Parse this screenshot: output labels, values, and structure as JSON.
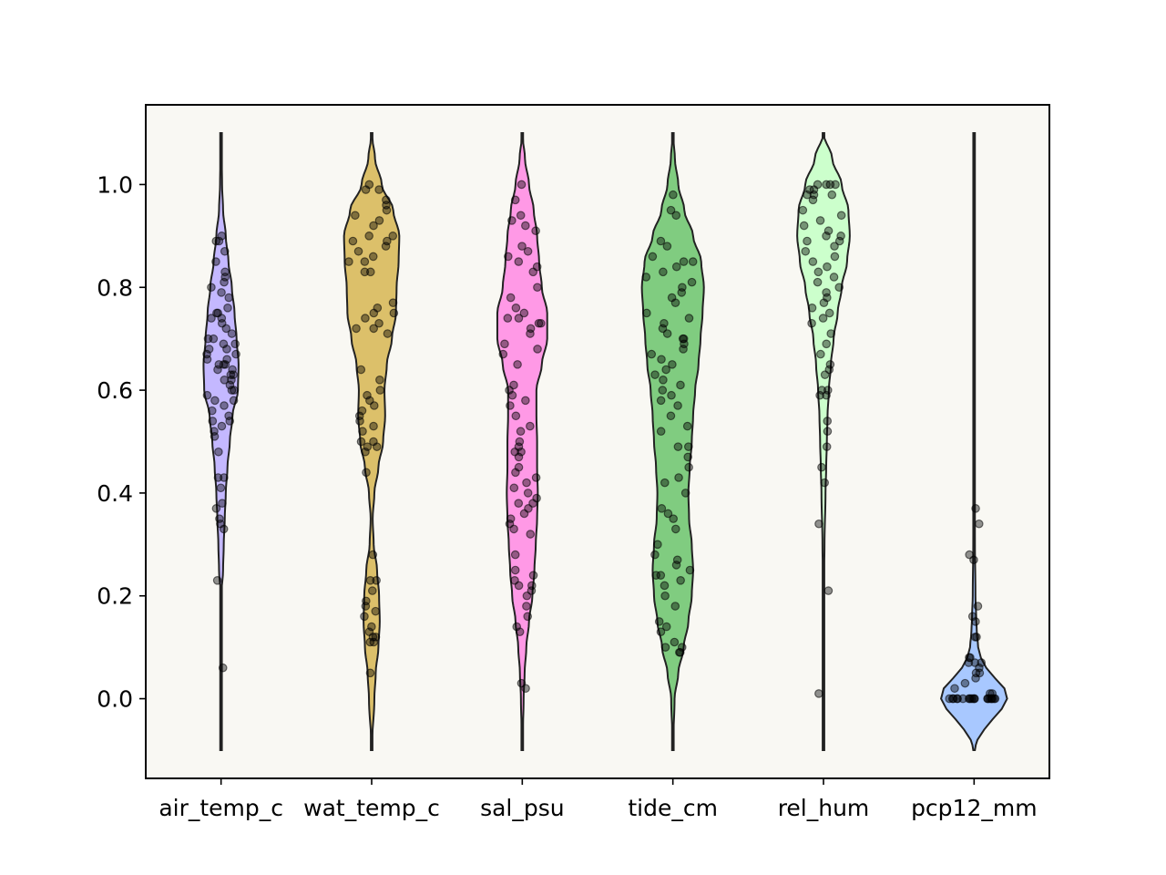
{
  "chart_data": {
    "type": "violin",
    "categories": [
      "air_temp_c",
      "wat_temp_c",
      "sal_psu",
      "tide_cm",
      "rel_hum",
      "pcp12_mm"
    ],
    "ylim": [
      -0.155,
      1.155
    ],
    "yticks": [
      "0.0",
      "0.2",
      "0.4",
      "0.6",
      "0.8",
      "1.0"
    ],
    "grid": false,
    "colors": [
      "#c4b8ff",
      "#dcc06a",
      "#ff99e6",
      "#80cc80",
      "#ccffcc",
      "#a8c8ff"
    ],
    "series": [
      {
        "category": "air_temp_c",
        "range": [
          -0.1,
          1.1
        ],
        "density_profile": [
          [
            -0.1,
            0.0
          ],
          [
            0.0,
            0.0
          ],
          [
            0.1,
            0.0
          ],
          [
            0.2,
            0.005
          ],
          [
            0.25,
            0.06
          ],
          [
            0.3,
            0.08
          ],
          [
            0.35,
            0.11
          ],
          [
            0.4,
            0.14
          ],
          [
            0.45,
            0.19
          ],
          [
            0.5,
            0.26
          ],
          [
            0.55,
            0.34
          ],
          [
            0.6,
            0.5
          ],
          [
            0.65,
            0.52
          ],
          [
            0.7,
            0.46
          ],
          [
            0.75,
            0.4
          ],
          [
            0.8,
            0.32
          ],
          [
            0.85,
            0.22
          ],
          [
            0.9,
            0.14
          ],
          [
            0.95,
            0.06
          ],
          [
            1.0,
            0.03
          ],
          [
            1.1,
            0.0
          ]
        ],
        "points": [
          0.89,
          0.9,
          0.89,
          0.87,
          0.85,
          0.83,
          0.82,
          0.81,
          0.8,
          0.79,
          0.78,
          0.76,
          0.75,
          0.75,
          0.74,
          0.74,
          0.73,
          0.72,
          0.71,
          0.7,
          0.7,
          0.69,
          0.69,
          0.68,
          0.68,
          0.67,
          0.67,
          0.66,
          0.66,
          0.65,
          0.65,
          0.65,
          0.64,
          0.64,
          0.63,
          0.63,
          0.62,
          0.62,
          0.61,
          0.6,
          0.6,
          0.59,
          0.58,
          0.58,
          0.57,
          0.56,
          0.55,
          0.54,
          0.54,
          0.53,
          0.52,
          0.51,
          0.48,
          0.43,
          0.43,
          0.41,
          0.38,
          0.37,
          0.35,
          0.34,
          0.33,
          0.23,
          0.06
        ]
      },
      {
        "category": "wat_temp_c",
        "range": [
          -0.1,
          1.1
        ],
        "density_profile": [
          [
            -0.1,
            0.0
          ],
          [
            0.0,
            0.08
          ],
          [
            0.05,
            0.12
          ],
          [
            0.1,
            0.2
          ],
          [
            0.15,
            0.24
          ],
          [
            0.2,
            0.22
          ],
          [
            0.25,
            0.16
          ],
          [
            0.3,
            0.06
          ],
          [
            0.35,
            0.03
          ],
          [
            0.4,
            0.08
          ],
          [
            0.45,
            0.2
          ],
          [
            0.5,
            0.34
          ],
          [
            0.55,
            0.4
          ],
          [
            0.6,
            0.38
          ],
          [
            0.65,
            0.45
          ],
          [
            0.7,
            0.6
          ],
          [
            0.75,
            0.72
          ],
          [
            0.8,
            0.74
          ],
          [
            0.85,
            0.8
          ],
          [
            0.9,
            0.82
          ],
          [
            0.95,
            0.64
          ],
          [
            1.0,
            0.3
          ],
          [
            1.05,
            0.1
          ],
          [
            1.1,
            0.0
          ]
        ],
        "points": [
          1.0,
          0.99,
          0.99,
          0.97,
          0.96,
          0.95,
          0.94,
          0.93,
          0.92,
          0.9,
          0.9,
          0.89,
          0.89,
          0.88,
          0.87,
          0.86,
          0.85,
          0.85,
          0.83,
          0.83,
          0.77,
          0.76,
          0.75,
          0.75,
          0.74,
          0.73,
          0.72,
          0.72,
          0.71,
          0.64,
          0.62,
          0.6,
          0.59,
          0.58,
          0.57,
          0.56,
          0.55,
          0.54,
          0.53,
          0.52,
          0.5,
          0.5,
          0.49,
          0.49,
          0.48,
          0.44,
          0.28,
          0.23,
          0.23,
          0.21,
          0.19,
          0.18,
          0.17,
          0.16,
          0.14,
          0.13,
          0.12,
          0.12,
          0.11,
          0.11,
          0.05
        ]
      },
      {
        "category": "sal_psu",
        "range": [
          -0.1,
          1.1
        ],
        "density_profile": [
          [
            -0.1,
            0.0
          ],
          [
            0.0,
            0.04
          ],
          [
            0.05,
            0.07
          ],
          [
            0.1,
            0.12
          ],
          [
            0.15,
            0.2
          ],
          [
            0.2,
            0.3
          ],
          [
            0.25,
            0.36
          ],
          [
            0.3,
            0.4
          ],
          [
            0.35,
            0.44
          ],
          [
            0.4,
            0.46
          ],
          [
            0.45,
            0.44
          ],
          [
            0.5,
            0.44
          ],
          [
            0.55,
            0.42
          ],
          [
            0.6,
            0.42
          ],
          [
            0.65,
            0.58
          ],
          [
            0.7,
            0.74
          ],
          [
            0.75,
            0.74
          ],
          [
            0.8,
            0.58
          ],
          [
            0.85,
            0.5
          ],
          [
            0.9,
            0.44
          ],
          [
            0.95,
            0.34
          ],
          [
            1.0,
            0.2
          ],
          [
            1.05,
            0.08
          ],
          [
            1.1,
            0.0
          ]
        ],
        "points": [
          1.0,
          0.97,
          0.94,
          0.93,
          0.92,
          0.91,
          0.88,
          0.87,
          0.86,
          0.85,
          0.84,
          0.83,
          0.8,
          0.78,
          0.76,
          0.75,
          0.74,
          0.74,
          0.73,
          0.73,
          0.72,
          0.71,
          0.69,
          0.68,
          0.67,
          0.65,
          0.61,
          0.6,
          0.59,
          0.58,
          0.57,
          0.55,
          0.53,
          0.52,
          0.5,
          0.49,
          0.48,
          0.48,
          0.47,
          0.45,
          0.44,
          0.43,
          0.42,
          0.41,
          0.4,
          0.39,
          0.38,
          0.38,
          0.37,
          0.36,
          0.35,
          0.34,
          0.33,
          0.32,
          0.28,
          0.25,
          0.24,
          0.23,
          0.22,
          0.22,
          0.21,
          0.2,
          0.18,
          0.16,
          0.14,
          0.13,
          0.03,
          0.02
        ]
      },
      {
        "category": "tide_cm",
        "range": [
          -0.1,
          1.1
        ],
        "density_profile": [
          [
            -0.1,
            0.0
          ],
          [
            0.0,
            0.05
          ],
          [
            0.05,
            0.16
          ],
          [
            0.1,
            0.32
          ],
          [
            0.15,
            0.46
          ],
          [
            0.2,
            0.56
          ],
          [
            0.25,
            0.6
          ],
          [
            0.3,
            0.56
          ],
          [
            0.35,
            0.48
          ],
          [
            0.4,
            0.46
          ],
          [
            0.45,
            0.5
          ],
          [
            0.5,
            0.56
          ],
          [
            0.55,
            0.6
          ],
          [
            0.6,
            0.66
          ],
          [
            0.65,
            0.76
          ],
          [
            0.7,
            0.82
          ],
          [
            0.75,
            0.88
          ],
          [
            0.8,
            0.92
          ],
          [
            0.85,
            0.84
          ],
          [
            0.9,
            0.6
          ],
          [
            0.95,
            0.34
          ],
          [
            1.0,
            0.16
          ],
          [
            1.05,
            0.06
          ],
          [
            1.1,
            0.0
          ]
        ],
        "points": [
          0.98,
          0.95,
          0.94,
          0.89,
          0.88,
          0.86,
          0.85,
          0.85,
          0.84,
          0.83,
          0.82,
          0.81,
          0.8,
          0.79,
          0.78,
          0.77,
          0.75,
          0.74,
          0.73,
          0.72,
          0.71,
          0.7,
          0.7,
          0.69,
          0.68,
          0.67,
          0.66,
          0.65,
          0.64,
          0.63,
          0.62,
          0.61,
          0.6,
          0.59,
          0.58,
          0.57,
          0.55,
          0.53,
          0.52,
          0.49,
          0.49,
          0.47,
          0.45,
          0.43,
          0.42,
          0.4,
          0.37,
          0.36,
          0.35,
          0.33,
          0.3,
          0.28,
          0.27,
          0.26,
          0.25,
          0.24,
          0.24,
          0.23,
          0.22,
          0.2,
          0.18,
          0.15,
          0.14,
          0.13,
          0.11,
          0.1,
          0.1,
          0.09,
          0.09
        ]
      },
      {
        "category": "rel_hum",
        "range": [
          -0.1,
          1.1
        ],
        "density_profile": [
          [
            -0.1,
            0.0
          ],
          [
            0.0,
            0.0
          ],
          [
            0.1,
            0.0
          ],
          [
            0.2,
            0.005
          ],
          [
            0.3,
            0.03
          ],
          [
            0.4,
            0.06
          ],
          [
            0.45,
            0.08
          ],
          [
            0.5,
            0.1
          ],
          [
            0.55,
            0.12
          ],
          [
            0.6,
            0.16
          ],
          [
            0.65,
            0.22
          ],
          [
            0.7,
            0.3
          ],
          [
            0.75,
            0.42
          ],
          [
            0.8,
            0.54
          ],
          [
            0.85,
            0.7
          ],
          [
            0.9,
            0.78
          ],
          [
            0.95,
            0.74
          ],
          [
            1.0,
            0.54
          ],
          [
            1.05,
            0.26
          ],
          [
            1.1,
            0.0
          ]
        ],
        "points": [
          1.0,
          1.0,
          1.0,
          1.0,
          0.99,
          0.99,
          0.98,
          0.98,
          0.98,
          0.97,
          0.95,
          0.94,
          0.93,
          0.92,
          0.91,
          0.9,
          0.9,
          0.89,
          0.89,
          0.88,
          0.87,
          0.86,
          0.85,
          0.84,
          0.83,
          0.82,
          0.81,
          0.8,
          0.79,
          0.78,
          0.77,
          0.76,
          0.75,
          0.74,
          0.73,
          0.71,
          0.69,
          0.67,
          0.65,
          0.64,
          0.63,
          0.6,
          0.6,
          0.59,
          0.59,
          0.54,
          0.52,
          0.49,
          0.45,
          0.42,
          0.34,
          0.21,
          0.01
        ]
      },
      {
        "category": "pcp12_mm",
        "range": [
          -0.1,
          1.1
        ],
        "density_profile": [
          [
            -0.1,
            0.0
          ],
          [
            -0.08,
            0.1
          ],
          [
            -0.06,
            0.3
          ],
          [
            -0.04,
            0.55
          ],
          [
            -0.02,
            0.82
          ],
          [
            0.0,
            0.98
          ],
          [
            0.02,
            0.9
          ],
          [
            0.04,
            0.62
          ],
          [
            0.06,
            0.36
          ],
          [
            0.08,
            0.2
          ],
          [
            0.1,
            0.12
          ],
          [
            0.13,
            0.08
          ],
          [
            0.16,
            0.06
          ],
          [
            0.2,
            0.04
          ],
          [
            0.3,
            0.025
          ],
          [
            0.4,
            0.015
          ],
          [
            0.5,
            0.01
          ],
          [
            0.6,
            0.005
          ],
          [
            0.7,
            0.0
          ],
          [
            1.1,
            0.0
          ]
        ],
        "points": [
          0.37,
          0.34,
          0.28,
          0.27,
          0.18,
          0.16,
          0.15,
          0.12,
          0.12,
          0.08,
          0.08,
          0.07,
          0.07,
          0.07,
          0.06,
          0.05,
          0.05,
          0.04,
          0.03,
          0.02,
          0.01,
          0.01,
          0.0,
          0.0,
          0.0,
          0.0,
          0.0,
          0.0,
          0.0,
          0.0,
          0.0,
          0.0,
          0.0,
          0.0,
          0.0,
          0.0,
          0.0,
          0.0,
          0.0,
          0.0,
          0.0,
          0.0
        ]
      }
    ]
  }
}
